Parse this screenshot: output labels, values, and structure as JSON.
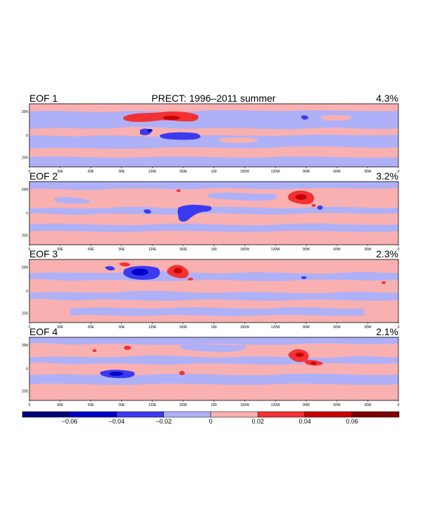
{
  "figure": {
    "title": "PRECT: 1996–2011 summer",
    "lon_ticks": [
      "0",
      "30E",
      "60E",
      "90E",
      "120E",
      "150E",
      "180",
      "150W",
      "120W",
      "90W",
      "60W",
      "30W",
      "0"
    ],
    "lat_ticks": [
      "20N",
      "0",
      "20S"
    ],
    "panels": [
      {
        "label": "EOF 1",
        "variance": "4.3%"
      },
      {
        "label": "EOF 2",
        "variance": "3.2%"
      },
      {
        "label": "EOF 3",
        "variance": "2.3%"
      },
      {
        "label": "EOF 4",
        "variance": "2.1%"
      }
    ]
  },
  "colorbar": {
    "ticks": [
      "−0.06",
      "−0.04",
      "−0.02",
      "0",
      "0.02",
      "0.04",
      "0.06"
    ],
    "bins": [
      {
        "range": [
          -0.08,
          -0.06
        ],
        "color": "#00007c"
      },
      {
        "range": [
          -0.06,
          -0.04
        ],
        "color": "#0000c8"
      },
      {
        "range": [
          -0.04,
          -0.02
        ],
        "color": "#3a3af0"
      },
      {
        "range": [
          -0.02,
          0
        ],
        "color": "#afb1f8"
      },
      {
        "range": [
          0,
          0.02
        ],
        "color": "#f8b0b0"
      },
      {
        "range": [
          0.02,
          0.04
        ],
        "color": "#f23232"
      },
      {
        "range": [
          0.04,
          0.06
        ],
        "color": "#c80000"
      },
      {
        "range": [
          0.06,
          0.08
        ],
        "color": "#7c0000"
      }
    ]
  },
  "colors": {
    "positive": "#f8b0b0",
    "negative": "#afb1f8",
    "coast": "#000000"
  }
}
